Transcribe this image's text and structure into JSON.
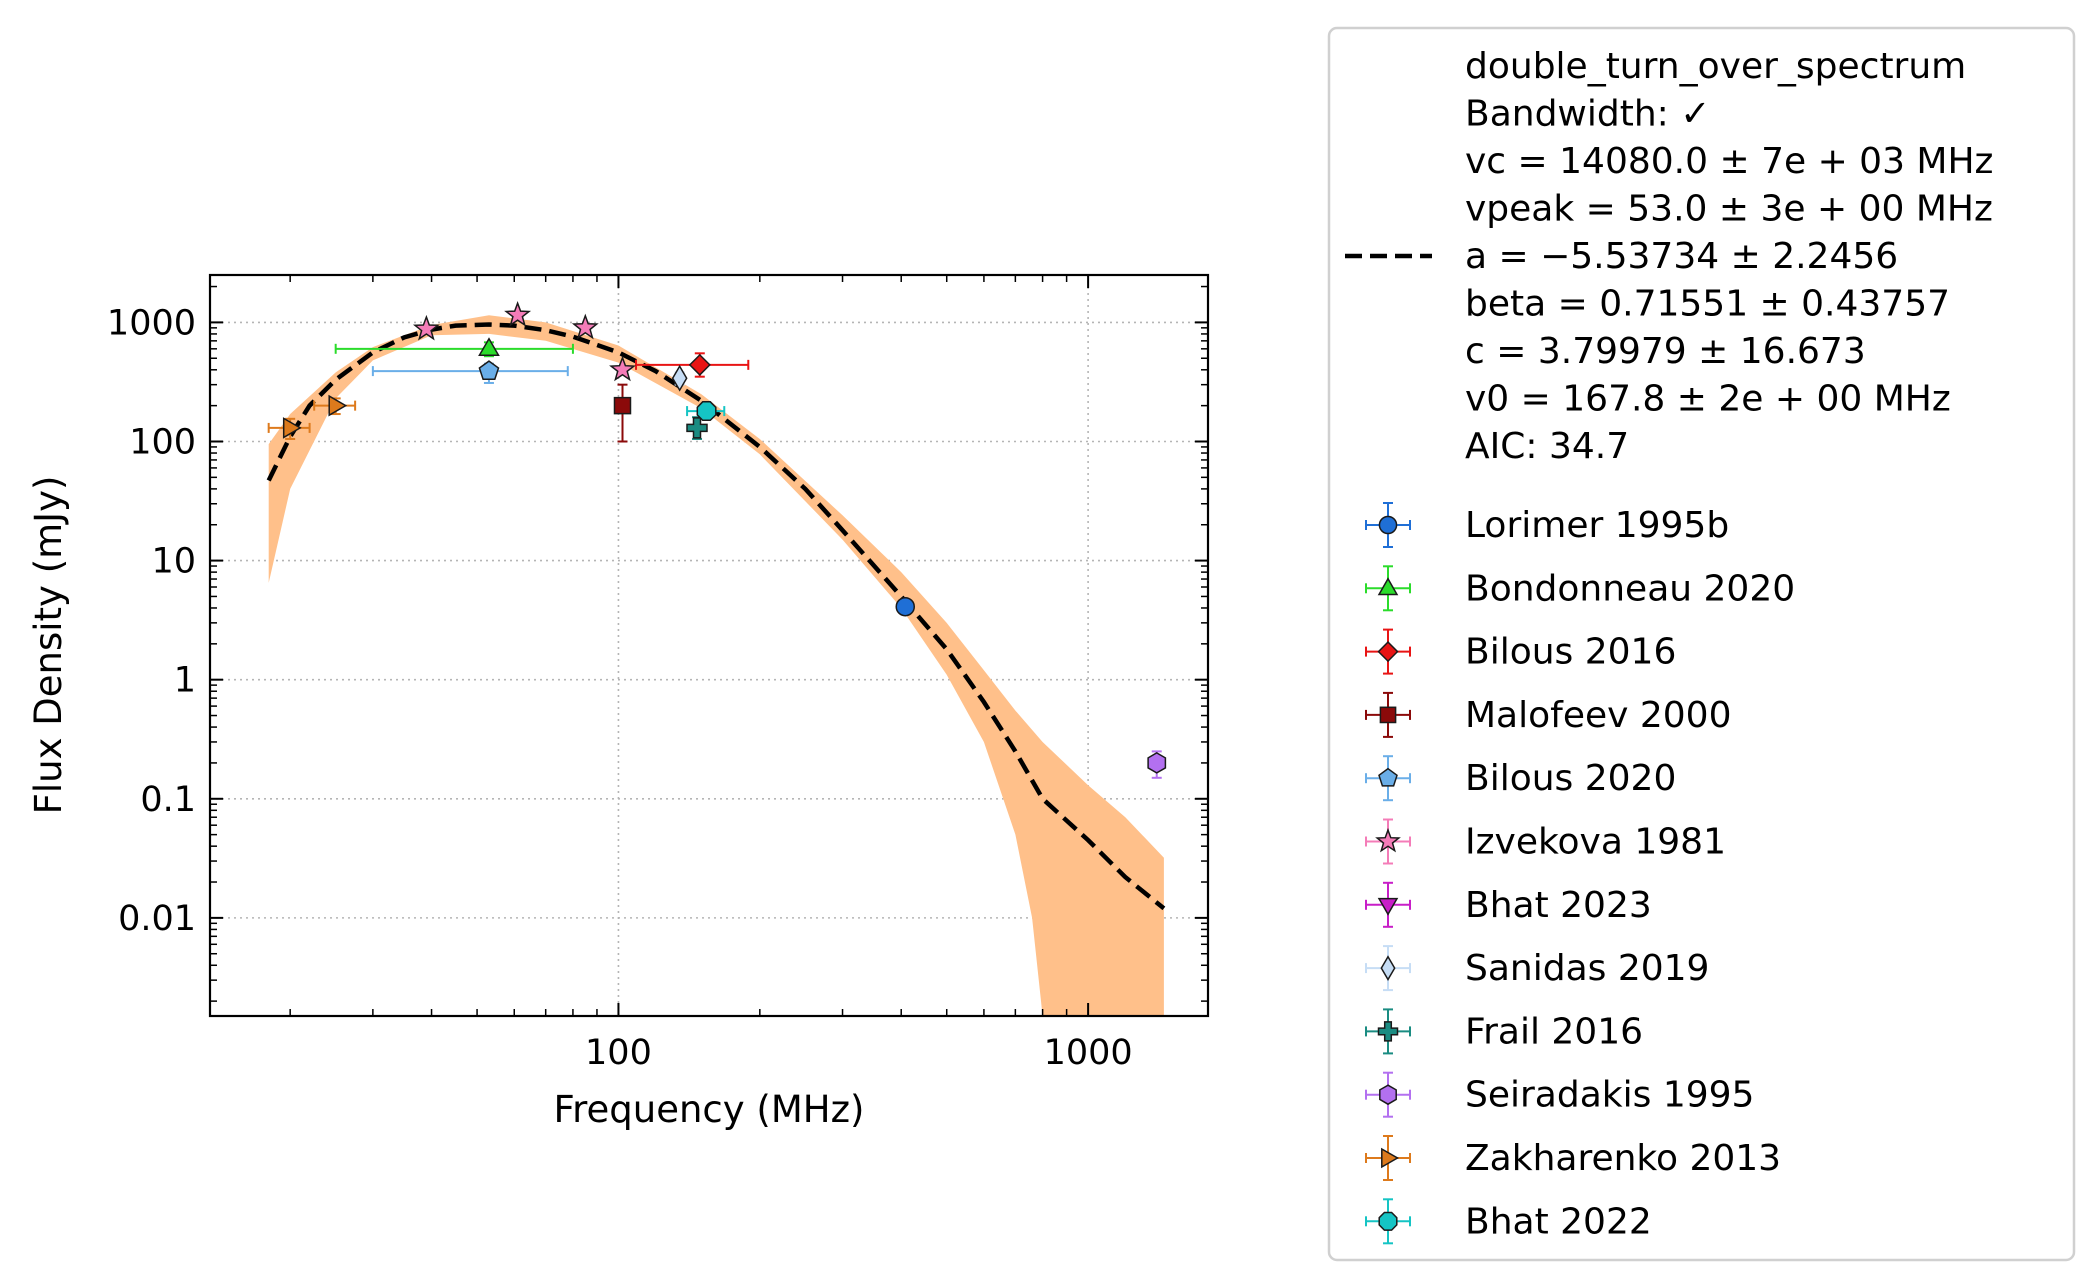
{
  "chart_data": {
    "type": "scatter",
    "xlabel": "Frequency (MHz)",
    "ylabel": "Flux Density (mJy)",
    "x_scale": "log",
    "y_scale": "log",
    "xlim": [
      13.5,
      1800
    ],
    "ylim": [
      0.0015,
      2500
    ],
    "x_ticks": [
      {
        "value": 100,
        "label": "100"
      },
      {
        "value": 1000,
        "label": "1000"
      }
    ],
    "y_ticks": [
      {
        "value": 0.01,
        "label": "0.01"
      },
      {
        "value": 0.1,
        "label": "0.1"
      },
      {
        "value": 1,
        "label": "1"
      },
      {
        "value": 10,
        "label": "10"
      },
      {
        "value": 100,
        "label": "100"
      },
      {
        "value": 1000,
        "label": "1000"
      }
    ],
    "grid": true,
    "legend_position": "outside-right",
    "fit": {
      "label_lines": [
        "double_turn_over_spectrum",
        "Bandwidth: ✓",
        "vc = 14080.0 ± 7e + 03 MHz",
        "vpeak = 53.0 ± 3e + 00 MHz",
        "a = −5.53734 ± 2.2456",
        "beta = 0.71551 ± 0.43757",
        "c = 3.79979 ± 16.673",
        "v0 = 167.8 ± 2e + 00 MHz",
        "AIC: 34.7"
      ],
      "line_color": "#000000",
      "band_color": "#ffc08a",
      "curve": [
        [
          18,
          47
        ],
        [
          20,
          110
        ],
        [
          22,
          200
        ],
        [
          25,
          330
        ],
        [
          30,
          560
        ],
        [
          35,
          750
        ],
        [
          40,
          870
        ],
        [
          45,
          940
        ],
        [
          53,
          960
        ],
        [
          60,
          940
        ],
        [
          70,
          860
        ],
        [
          80,
          760
        ],
        [
          100,
          560
        ],
        [
          120,
          390
        ],
        [
          150,
          220
        ],
        [
          200,
          90
        ],
        [
          250,
          40
        ],
        [
          300,
          18
        ],
        [
          400,
          5
        ],
        [
          500,
          1.8
        ],
        [
          600,
          0.65
        ],
        [
          700,
          0.25
        ],
        [
          800,
          0.1
        ],
        [
          1000,
          0.045
        ],
        [
          1200,
          0.022
        ],
        [
          1450,
          0.012
        ]
      ],
      "band_upper": [
        [
          18,
          95
        ],
        [
          20,
          170
        ],
        [
          25,
          380
        ],
        [
          30,
          620
        ],
        [
          40,
          950
        ],
        [
          53,
          1150
        ],
        [
          70,
          1000
        ],
        [
          100,
          640
        ],
        [
          150,
          250
        ],
        [
          200,
          105
        ],
        [
          300,
          24
        ],
        [
          400,
          8
        ],
        [
          500,
          3
        ],
        [
          600,
          1.2
        ],
        [
          700,
          0.55
        ],
        [
          800,
          0.3
        ],
        [
          1000,
          0.13
        ],
        [
          1200,
          0.07
        ],
        [
          1450,
          0.032
        ]
      ],
      "band_lower": [
        [
          18,
          6.5
        ],
        [
          20,
          40
        ],
        [
          25,
          230
        ],
        [
          30,
          480
        ],
        [
          40,
          780
        ],
        [
          53,
          800
        ],
        [
          70,
          700
        ],
        [
          100,
          460
        ],
        [
          150,
          190
        ],
        [
          200,
          78
        ],
        [
          300,
          15
        ],
        [
          400,
          4
        ],
        [
          500,
          1.1
        ],
        [
          600,
          0.3
        ],
        [
          700,
          0.05
        ],
        [
          760,
          0.01
        ],
        [
          800,
          0.0015
        ]
      ]
    },
    "series": [
      {
        "name": "Lorimer 1995b",
        "marker": "circle",
        "color": "#1f6fd6",
        "points": [
          {
            "x": 408,
            "y": 4.1,
            "xerr": [
              8,
              8
            ],
            "yerr": [
              0.5,
              0.5
            ]
          }
        ]
      },
      {
        "name": "Bondonneau 2020",
        "marker": "triangle-up",
        "color": "#2bdc2b",
        "points": [
          {
            "x": 53,
            "y": 600,
            "xerr": [
              28,
              27
            ],
            "yerr": [
              80,
              80
            ]
          }
        ]
      },
      {
        "name": "Bilous 2016",
        "marker": "diamond",
        "color": "#e81414",
        "points": [
          {
            "x": 149,
            "y": 440,
            "xerr": [
              40,
              40
            ],
            "yerr": [
              90,
              110
            ]
          }
        ]
      },
      {
        "name": "Malofeev 2000",
        "marker": "square",
        "color": "#8b0a0a",
        "points": [
          {
            "x": 102,
            "y": 200,
            "xerr": [
              0,
              0
            ],
            "yerr": [
              100,
              100
            ]
          }
        ]
      },
      {
        "name": "Bilous 2020",
        "marker": "pentagon",
        "color": "#6aaee8",
        "points": [
          {
            "x": 53,
            "y": 390,
            "xerr": [
              23,
              25
            ],
            "yerr": [
              80,
              60
            ]
          }
        ]
      },
      {
        "name": "Izvekova 1981",
        "marker": "star",
        "color": "#f47cb8",
        "points": [
          {
            "x": 39,
            "y": 880,
            "xerr": [
              0,
              0
            ],
            "yerr": [
              0,
              0
            ]
          },
          {
            "x": 61,
            "y": 1150,
            "xerr": [
              0,
              0
            ],
            "yerr": [
              0,
              0
            ]
          },
          {
            "x": 85,
            "y": 900,
            "xerr": [
              0,
              0
            ],
            "yerr": [
              0,
              0
            ]
          },
          {
            "x": 102,
            "y": 400,
            "xerr": [
              0,
              0
            ],
            "yerr": [
              0,
              0
            ]
          }
        ]
      },
      {
        "name": "Bhat 2023",
        "marker": "triangle-down",
        "color": "#c81ec8",
        "points": []
      },
      {
        "name": "Sanidas 2019",
        "marker": "thin-diamond",
        "color": "#c6ddf5",
        "points": [
          {
            "x": 135,
            "y": 340,
            "xerr": [
              0,
              0
            ],
            "yerr": [
              40,
              40
            ]
          }
        ]
      },
      {
        "name": "Frail 2016",
        "marker": "plus",
        "color": "#1a8c82",
        "points": [
          {
            "x": 147,
            "y": 130,
            "xerr": [
              0,
              0
            ],
            "yerr": [
              25,
              30
            ]
          }
        ]
      },
      {
        "name": "Seiradakis 1995",
        "marker": "hexagon",
        "color": "#b370f0",
        "points": [
          {
            "x": 1400,
            "y": 0.2,
            "xerr": [
              0,
              0
            ],
            "yerr": [
              0.05,
              0.05
            ]
          }
        ]
      },
      {
        "name": "Zakharenko 2013",
        "marker": "triangle-right",
        "color": "#dd7a1c",
        "points": [
          {
            "x": 20,
            "y": 130,
            "xerr": [
              2,
              2
            ],
            "yerr": [
              25,
              25
            ]
          },
          {
            "x": 25,
            "y": 200,
            "xerr": [
              2.5,
              2.5
            ],
            "yerr": [
              30,
              30
            ]
          }
        ]
      },
      {
        "name": "Bhat 2022",
        "marker": "octagon",
        "color": "#15c4c4",
        "points": [
          {
            "x": 154,
            "y": 180,
            "xerr": [
              14,
              14
            ],
            "yerr": [
              25,
              25
            ]
          }
        ]
      }
    ]
  }
}
